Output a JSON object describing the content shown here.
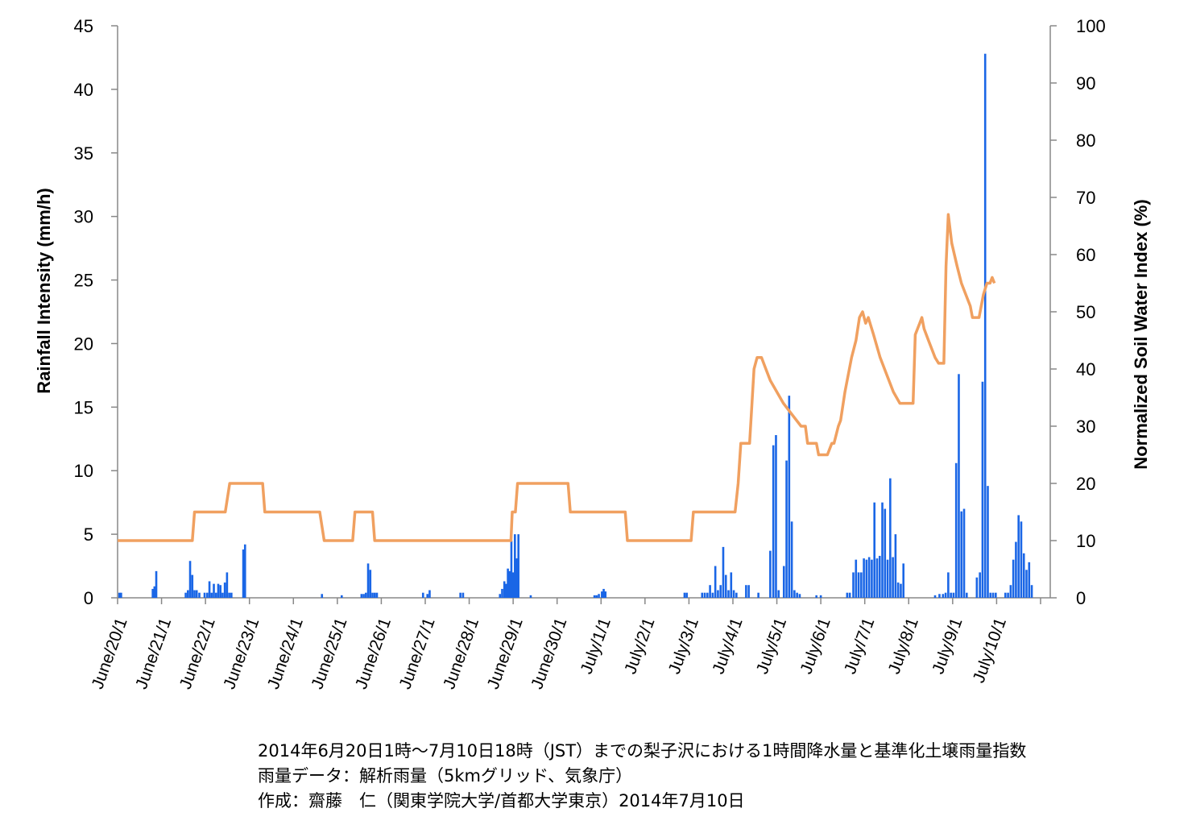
{
  "chart_data": {
    "type": "bar+line",
    "title": "",
    "y_left": {
      "label": "Rainfall Intensity (mm/h)",
      "range": [
        0,
        45
      ],
      "ticks": [
        "0",
        "5",
        "10",
        "15",
        "20",
        "25",
        "30",
        "35",
        "40",
        "45"
      ]
    },
    "y_right": {
      "label": "Normalized Soil Water Index (%)",
      "range": [
        0,
        100
      ],
      "ticks": [
        "0",
        "10",
        "20",
        "30",
        "40",
        "50",
        "60",
        "70",
        "80",
        "90",
        "100"
      ]
    },
    "x": {
      "unit": "day",
      "start": "June/20/1",
      "range": [
        0,
        20.7
      ],
      "tick_labels": [
        "June/20/1",
        "June/21/1",
        "June/22/1",
        "June/23/1",
        "June/24/1",
        "June/25/1",
        "June/26/1",
        "June/27/1",
        "June/28/1",
        "June/29/1",
        "June/30/1",
        "July/1/1",
        "July/2/1",
        "July/3/1",
        "July/4/1",
        "July/5/1",
        "July/6/1",
        "July/7/1",
        "July/8/1",
        "July/9/1",
        "July/10/1"
      ]
    },
    "colors": {
      "rain": "#1a66e6",
      "swi": "#f0a060",
      "axis": "#888888"
    },
    "grid": false,
    "rain_series": {
      "name": "1時間降水量",
      "points": [
        [
          0.04,
          0.4
        ],
        [
          0.08,
          0.4
        ],
        [
          0.8,
          0.7
        ],
        [
          0.84,
          0.9
        ],
        [
          0.88,
          2.1
        ],
        [
          1.55,
          0.4
        ],
        [
          1.6,
          0.6
        ],
        [
          1.65,
          2.9
        ],
        [
          1.7,
          1.8
        ],
        [
          1.75,
          0.6
        ],
        [
          1.8,
          0.6
        ],
        [
          1.86,
          0.4
        ],
        [
          1.98,
          0.4
        ],
        [
          2.04,
          0.4
        ],
        [
          2.09,
          1.3
        ],
        [
          2.14,
          0.4
        ],
        [
          2.19,
          1.1
        ],
        [
          2.24,
          0.4
        ],
        [
          2.29,
          1.1
        ],
        [
          2.34,
          1.0
        ],
        [
          2.39,
          0.4
        ],
        [
          2.44,
          1.2
        ],
        [
          2.49,
          2.0
        ],
        [
          2.54,
          0.4
        ],
        [
          2.59,
          0.4
        ],
        [
          2.86,
          3.8
        ],
        [
          2.9,
          4.2
        ],
        [
          4.65,
          0.3
        ],
        [
          5.1,
          0.2
        ],
        [
          5.55,
          0.3
        ],
        [
          5.6,
          0.3
        ],
        [
          5.65,
          0.4
        ],
        [
          5.7,
          2.7
        ],
        [
          5.75,
          2.2
        ],
        [
          5.8,
          0.4
        ],
        [
          5.85,
          0.4
        ],
        [
          5.9,
          0.4
        ],
        [
          6.95,
          0.4
        ],
        [
          7.05,
          0.3
        ],
        [
          7.1,
          0.6
        ],
        [
          7.8,
          0.4
        ],
        [
          7.86,
          0.4
        ],
        [
          8.7,
          0.3
        ],
        [
          8.75,
          0.7
        ],
        [
          8.8,
          1.3
        ],
        [
          8.84,
          1.1
        ],
        [
          8.88,
          2.3
        ],
        [
          8.92,
          2.1
        ],
        [
          8.96,
          4.5
        ],
        [
          9.0,
          2.0
        ],
        [
          9.04,
          5.0
        ],
        [
          9.08,
          3.1
        ],
        [
          9.12,
          5.0
        ],
        [
          9.4,
          0.2
        ],
        [
          10.85,
          0.2
        ],
        [
          10.9,
          0.2
        ],
        [
          10.95,
          0.3
        ],
        [
          11.02,
          0.5
        ],
        [
          11.06,
          0.7
        ],
        [
          11.1,
          0.5
        ],
        [
          12.9,
          0.4
        ],
        [
          12.95,
          0.4
        ],
        [
          13.3,
          0.4
        ],
        [
          13.36,
          0.4
        ],
        [
          13.42,
          0.4
        ],
        [
          13.48,
          1.0
        ],
        [
          13.54,
          0.4
        ],
        [
          13.6,
          2.5
        ],
        [
          13.66,
          0.6
        ],
        [
          13.72,
          1.0
        ],
        [
          13.78,
          4.0
        ],
        [
          13.84,
          1.8
        ],
        [
          13.9,
          0.6
        ],
        [
          13.96,
          2.0
        ],
        [
          14.02,
          0.6
        ],
        [
          14.08,
          0.4
        ],
        [
          14.3,
          1.0
        ],
        [
          14.36,
          1.0
        ],
        [
          14.58,
          0.4
        ],
        [
          14.85,
          3.7
        ],
        [
          14.92,
          12.0
        ],
        [
          14.98,
          12.8
        ],
        [
          15.04,
          0.6
        ],
        [
          15.16,
          2.5
        ],
        [
          15.22,
          10.8
        ],
        [
          15.28,
          15.9
        ],
        [
          15.34,
          6.0
        ],
        [
          15.4,
          0.6
        ],
        [
          15.46,
          0.4
        ],
        [
          15.52,
          0.3
        ],
        [
          15.9,
          0.2
        ],
        [
          16.0,
          0.2
        ],
        [
          16.6,
          0.4
        ],
        [
          16.66,
          0.4
        ],
        [
          16.74,
          2.0
        ],
        [
          16.8,
          3.0
        ],
        [
          16.86,
          2.0
        ],
        [
          16.92,
          2.0
        ],
        [
          16.98,
          3.1
        ],
        [
          17.04,
          3.0
        ],
        [
          17.1,
          3.2
        ],
        [
          17.16,
          3.0
        ],
        [
          17.22,
          7.5
        ],
        [
          17.28,
          3.1
        ],
        [
          17.34,
          3.3
        ],
        [
          17.4,
          7.5
        ],
        [
          17.46,
          7.0
        ],
        [
          17.52,
          3.0
        ],
        [
          17.58,
          9.4
        ],
        [
          17.64,
          3.2
        ],
        [
          17.7,
          5.0
        ],
        [
          17.76,
          1.2
        ],
        [
          17.82,
          1.1
        ],
        [
          17.88,
          2.7
        ],
        [
          18.6,
          0.2
        ],
        [
          18.7,
          0.3
        ],
        [
          18.78,
          0.3
        ],
        [
          18.84,
          0.4
        ],
        [
          18.9,
          2.0
        ],
        [
          18.96,
          0.4
        ],
        [
          19.02,
          0.4
        ],
        [
          19.08,
          10.6
        ],
        [
          19.14,
          17.6
        ],
        [
          19.2,
          6.8
        ],
        [
          19.26,
          7.0
        ],
        [
          19.32,
          0.4
        ],
        [
          19.55,
          1.6
        ],
        [
          19.62,
          2.0
        ],
        [
          19.68,
          17.0
        ],
        [
          19.74,
          42.8
        ],
        [
          19.8,
          8.8
        ],
        [
          19.86,
          0.4
        ],
        [
          19.92,
          0.4
        ],
        [
          19.98,
          0.4
        ],
        [
          20.2,
          0.4
        ],
        [
          20.26,
          0.4
        ],
        [
          20.32,
          1.0
        ],
        [
          20.38,
          3.0
        ],
        [
          20.44,
          4.4
        ],
        [
          20.5,
          6.5
        ],
        [
          20.56,
          6.0
        ],
        [
          20.62,
          3.5
        ],
        [
          20.68,
          2.2
        ],
        [
          20.74,
          2.8
        ],
        [
          20.8,
          1.0
        ]
      ]
    },
    "swi_series": {
      "name": "基準化土壌雨量指数",
      "points": [
        [
          0,
          10
        ],
        [
          1.7,
          10
        ],
        [
          1.75,
          15
        ],
        [
          2.45,
          15
        ],
        [
          2.55,
          20
        ],
        [
          3.3,
          20
        ],
        [
          3.35,
          15
        ],
        [
          4.6,
          15
        ],
        [
          4.7,
          10
        ],
        [
          5.35,
          10
        ],
        [
          5.4,
          15
        ],
        [
          5.8,
          15
        ],
        [
          5.85,
          10
        ],
        [
          8.95,
          10
        ],
        [
          8.98,
          15
        ],
        [
          9.05,
          15
        ],
        [
          9.1,
          20
        ],
        [
          10.25,
          20
        ],
        [
          10.3,
          15
        ],
        [
          11.55,
          15
        ],
        [
          11.6,
          10
        ],
        [
          13.05,
          10
        ],
        [
          13.1,
          15
        ],
        [
          14.05,
          15
        ],
        [
          14.12,
          20
        ],
        [
          14.18,
          27
        ],
        [
          14.38,
          27
        ],
        [
          14.48,
          40
        ],
        [
          14.55,
          42
        ],
        [
          14.65,
          42
        ],
        [
          14.75,
          40
        ],
        [
          14.85,
          38
        ],
        [
          15.0,
          36
        ],
        [
          15.15,
          34
        ],
        [
          15.35,
          32
        ],
        [
          15.55,
          30
        ],
        [
          15.65,
          30
        ],
        [
          15.7,
          27
        ],
        [
          15.9,
          27
        ],
        [
          15.95,
          25
        ],
        [
          16.15,
          25
        ],
        [
          16.25,
          27
        ],
        [
          16.3,
          27
        ],
        [
          16.4,
          30
        ],
        [
          16.45,
          31
        ],
        [
          16.55,
          36
        ],
        [
          16.7,
          42
        ],
        [
          16.8,
          45
        ],
        [
          16.88,
          49
        ],
        [
          16.95,
          50
        ],
        [
          17.02,
          48
        ],
        [
          17.08,
          49
        ],
        [
          17.2,
          46
        ],
        [
          17.35,
          42
        ],
        [
          17.5,
          39
        ],
        [
          17.65,
          36
        ],
        [
          17.8,
          34
        ],
        [
          18.1,
          34
        ],
        [
          18.15,
          46
        ],
        [
          18.25,
          48
        ],
        [
          18.3,
          49
        ],
        [
          18.35,
          47
        ],
        [
          18.45,
          45
        ],
        [
          18.6,
          42
        ],
        [
          18.68,
          41
        ],
        [
          18.8,
          41
        ],
        [
          18.85,
          58
        ],
        [
          18.9,
          67
        ],
        [
          18.98,
          62
        ],
        [
          19.1,
          58
        ],
        [
          19.2,
          55
        ],
        [
          19.3,
          53
        ],
        [
          19.4,
          51
        ],
        [
          19.45,
          49
        ],
        [
          19.6,
          49
        ],
        [
          19.7,
          53
        ],
        [
          19.78,
          55
        ],
        [
          19.85,
          55
        ],
        [
          19.9,
          56
        ],
        [
          19.95,
          55
        ]
      ]
    }
  },
  "captions": [
    "2014年6月20日1時～7月10日18時（JST）までの梨子沢における1時間降水量と基準化土壌雨量指数",
    "雨量データ：解析雨量（5kmグリッド、気象庁）",
    "作成：齋藤　仁（関東学院大学/首都大学東京）2014年7月10日"
  ]
}
